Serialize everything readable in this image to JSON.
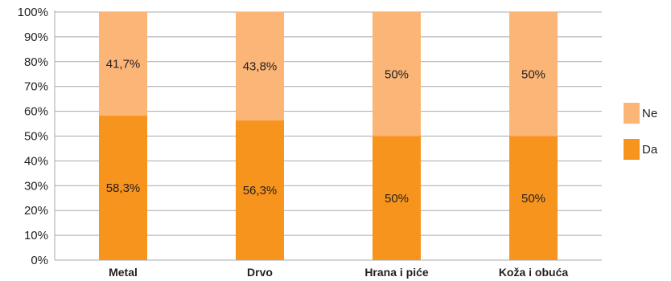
{
  "chart_data": {
    "type": "bar",
    "stacked": true,
    "categories": [
      "Metal",
      "Drvo",
      "Hrana i piće",
      "Koža i obuća"
    ],
    "series": [
      {
        "name": "Da",
        "values": [
          58.3,
          56.3,
          50,
          50
        ],
        "labels": [
          "58,3%",
          "56,3%",
          "50%",
          "50%"
        ],
        "color": "#f7941d"
      },
      {
        "name": "Ne",
        "values": [
          41.7,
          43.8,
          50,
          50
        ],
        "labels": [
          "41,7%",
          "43,8%",
          "50%",
          "50%"
        ],
        "color": "#fbb577"
      }
    ],
    "ylim": [
      0,
      100
    ],
    "yticks": [
      "0%",
      "10%",
      "20%",
      "30%",
      "40%",
      "50%",
      "60%",
      "70%",
      "80%",
      "90%",
      "100%"
    ],
    "grid": true,
    "gridline_color": "#a7a9ac",
    "legend_position": "right"
  }
}
